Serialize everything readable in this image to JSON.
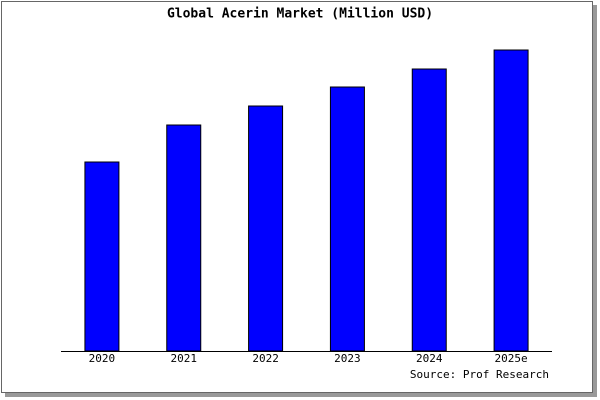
{
  "chart_data": {
    "type": "bar",
    "title": "Global Acerin Market (Million USD)",
    "categories": [
      "2020",
      "2021",
      "2022",
      "2023",
      "2024",
      "2025e"
    ],
    "values": [
      189,
      226,
      245,
      264,
      282,
      301
    ],
    "color": "#0000ff",
    "source": "Source: Prof Research"
  }
}
